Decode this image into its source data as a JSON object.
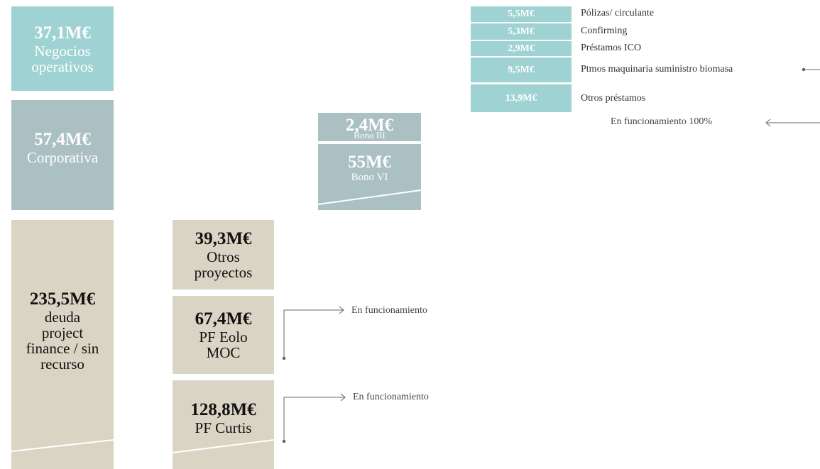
{
  "summary": [
    {
      "amount": "37,1M€",
      "label": "Negocios operativos"
    },
    {
      "amount": "57,4M€",
      "label": "Corporativa"
    },
    {
      "amount": "235,5M€",
      "label": "deuda project finance / sin recurso"
    }
  ],
  "projects": [
    {
      "amount": "39,3M€",
      "label": "Otros proyectos"
    },
    {
      "amount": "67,4M€",
      "label": "PF Eolo MOC"
    },
    {
      "amount": "128,8M€",
      "label": "PF Curtis"
    }
  ],
  "bonds": [
    {
      "amount": "2,4M€",
      "label": "Bono III"
    },
    {
      "amount": "55M€",
      "label": "Bono VI"
    }
  ],
  "corporate_items": [
    {
      "amount": "5,5M€",
      "label": "Pólizas/ circulante"
    },
    {
      "amount": "5,3M€",
      "label": "Confirming"
    },
    {
      "amount": "2,9M€",
      "label": "Préstamos ICO"
    },
    {
      "amount": "9,5M€",
      "label": "Ptmos maquinaria suministro biomasa"
    },
    {
      "amount": "13,9M€",
      "label": "Otros préstamos"
    }
  ],
  "notes": {
    "corporate": "En funcionamiento 100%",
    "projects": [
      "En funcionamiento",
      "En funcionamiento"
    ]
  }
}
